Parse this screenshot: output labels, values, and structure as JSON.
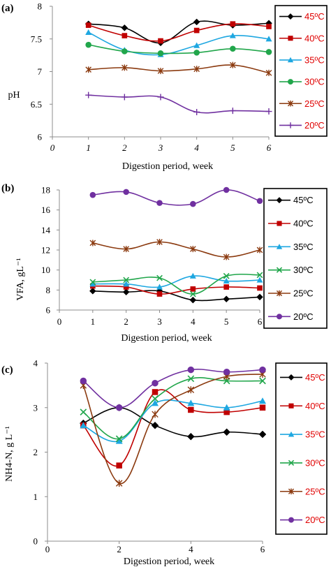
{
  "chart_data": [
    {
      "type": "line",
      "title": "(a)",
      "xlabel": "Digestion period, week",
      "ylabel": "pH",
      "x_ticks": [
        "0",
        "1",
        "2",
        "3",
        "4",
        "5",
        "6"
      ],
      "y_ticks": [
        "6",
        "6.5",
        "7",
        "7.5",
        "8"
      ],
      "xlim": [
        0,
        6
      ],
      "ylim": [
        6,
        8
      ],
      "grid": false,
      "legend_position": "right",
      "x": [
        1,
        2,
        3,
        4,
        5,
        6
      ],
      "series": [
        {
          "name": "45ºC",
          "color": "#000000",
          "marker": "diamond",
          "values": [
            7.73,
            7.67,
            7.44,
            7.76,
            7.71,
            7.74
          ]
        },
        {
          "name": "40ºC",
          "color": "#c00000",
          "marker": "square",
          "values": [
            7.71,
            7.55,
            7.47,
            7.63,
            7.73,
            7.69
          ]
        },
        {
          "name": "35ºC",
          "color": "#1ea7e1",
          "marker": "triangle",
          "values": [
            7.6,
            7.33,
            7.26,
            7.4,
            7.55,
            7.5
          ]
        },
        {
          "name": "30ºC",
          "color": "#21a64b",
          "marker": "circle",
          "values": [
            7.41,
            7.31,
            7.28,
            7.29,
            7.35,
            7.3
          ]
        },
        {
          "name": "25ºC",
          "color": "#8b3a0f",
          "marker": "star",
          "values": [
            7.03,
            7.06,
            7.01,
            7.04,
            7.1,
            6.98
          ]
        },
        {
          "name": "20ºC",
          "color": "#7030a0",
          "marker": "plus",
          "values": [
            6.64,
            6.61,
            6.61,
            6.38,
            6.4,
            6.39
          ]
        }
      ]
    },
    {
      "type": "line",
      "title": "(b)",
      "xlabel": "Digestion period, week",
      "ylabel": "VFA, gL⁻¹",
      "x_ticks": [
        "0",
        "1",
        "2",
        "3",
        "4",
        "5",
        "6"
      ],
      "y_ticks": [
        "6",
        "8",
        "10",
        "12",
        "14",
        "16",
        "18"
      ],
      "xlim": [
        0,
        6
      ],
      "ylim": [
        6,
        18
      ],
      "grid": false,
      "legend_position": "right",
      "x": [
        1,
        2,
        3,
        4,
        5,
        6
      ],
      "series": [
        {
          "name": "45ºC",
          "color": "#000000",
          "marker": "diamond",
          "values": [
            7.9,
            7.8,
            7.9,
            7.0,
            7.1,
            7.3
          ]
        },
        {
          "name": "40ºC",
          "color": "#c00000",
          "marker": "square",
          "values": [
            8.4,
            8.3,
            7.6,
            8.1,
            8.3,
            8.2
          ]
        },
        {
          "name": "35ºC",
          "color": "#1ea7e1",
          "marker": "triangle",
          "values": [
            8.6,
            8.6,
            8.3,
            9.4,
            8.9,
            9.0
          ]
        },
        {
          "name": "30ºC",
          "color": "#21a64b",
          "marker": "x",
          "values": [
            8.8,
            9.0,
            9.2,
            7.6,
            9.4,
            9.5
          ]
        },
        {
          "name": "25ºC",
          "color": "#8b3a0f",
          "marker": "star",
          "values": [
            12.7,
            12.1,
            12.8,
            12.1,
            11.3,
            12.0
          ]
        },
        {
          "name": "20ºC",
          "color": "#7030a0",
          "marker": "circle",
          "values": [
            17.5,
            17.8,
            16.7,
            16.6,
            18.0,
            16.9
          ]
        }
      ]
    },
    {
      "type": "line",
      "title": "(c)",
      "xlabel": "Digestion period, week",
      "ylabel": "NH4-N, g L⁻¹",
      "x_ticks": [
        "0",
        "2",
        "4",
        "6"
      ],
      "y_ticks": [
        "0",
        "1",
        "2",
        "3",
        "4"
      ],
      "xlim": [
        0,
        6
      ],
      "ylim": [
        0,
        4
      ],
      "grid": false,
      "legend_position": "right",
      "x": [
        1,
        2,
        3,
        4,
        5,
        6
      ],
      "series": [
        {
          "name": "45ºC",
          "color": "#000000",
          "marker": "diamond",
          "values": [
            2.65,
            3.0,
            2.6,
            2.35,
            2.45,
            2.4
          ]
        },
        {
          "name": "40ºC",
          "color": "#c00000",
          "marker": "square",
          "values": [
            2.6,
            1.7,
            3.35,
            2.95,
            2.9,
            3.0
          ]
        },
        {
          "name": "35ºC",
          "color": "#1ea7e1",
          "marker": "triangle",
          "values": [
            2.6,
            2.25,
            3.1,
            3.1,
            3.0,
            3.15
          ]
        },
        {
          "name": "30ºC",
          "color": "#21a64b",
          "marker": "x",
          "values": [
            2.9,
            2.3,
            3.2,
            3.65,
            3.6,
            3.6
          ]
        },
        {
          "name": "25ºC",
          "color": "#8b3a0f",
          "marker": "star",
          "values": [
            3.5,
            1.3,
            2.85,
            3.4,
            3.7,
            3.75
          ]
        },
        {
          "name": "20ºC",
          "color": "#7030a0",
          "marker": "circle",
          "values": [
            3.6,
            3.0,
            3.55,
            3.85,
            3.8,
            3.85
          ]
        }
      ]
    }
  ]
}
